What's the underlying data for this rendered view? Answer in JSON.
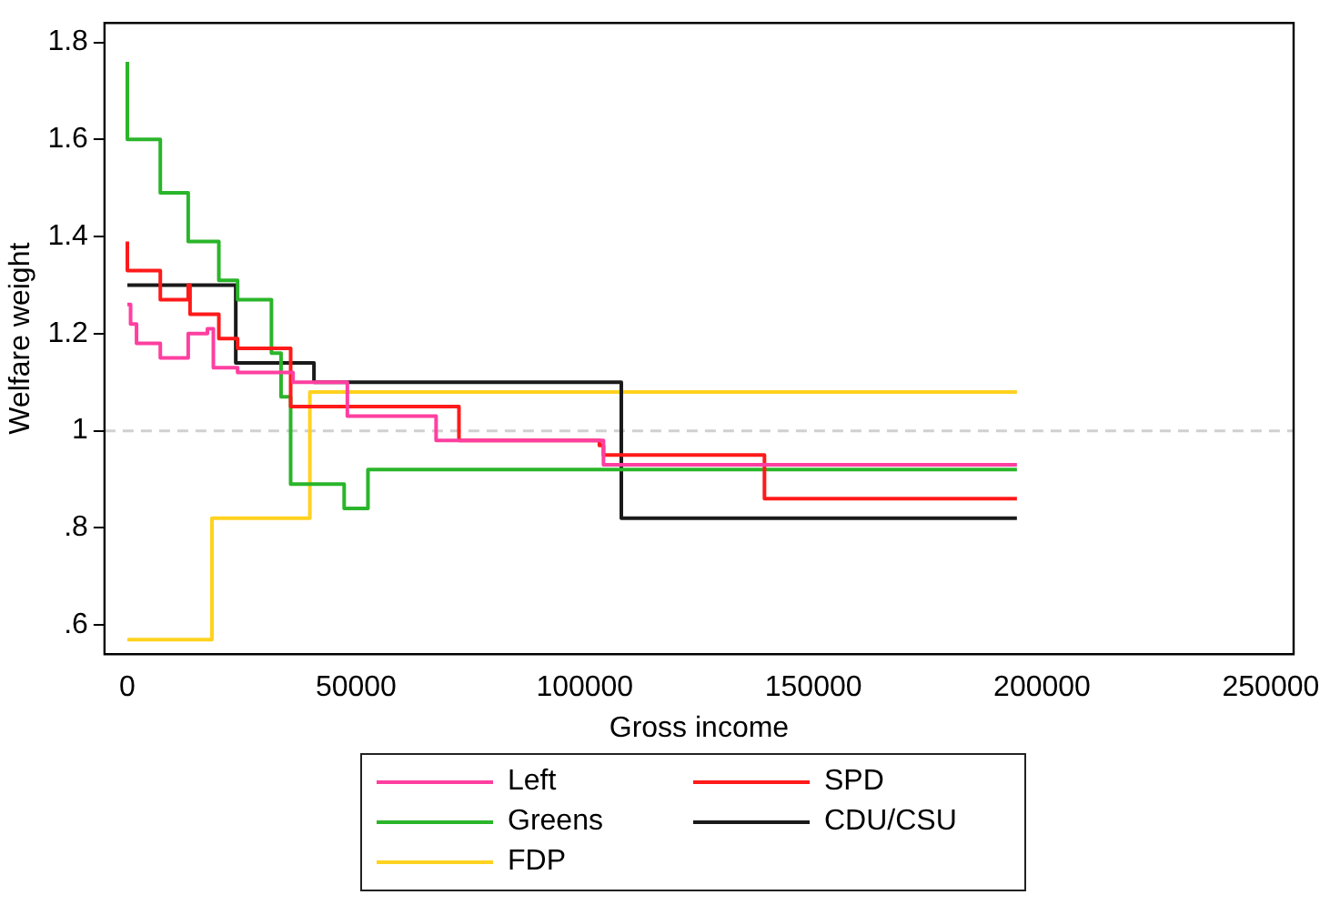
{
  "chart_data": {
    "type": "step",
    "xlabel": "Gross income",
    "ylabel": "Welfare weight",
    "xlim": [
      -5000,
      255000
    ],
    "xticks": [
      0,
      50000,
      100000,
      150000,
      200000,
      250000
    ],
    "ylim": [
      0.54,
      1.84
    ],
    "yticks": [
      {
        "value": 0.6,
        "label": ".6"
      },
      {
        "value": 0.8,
        "label": ".8"
      },
      1,
      1.2,
      1.4,
      1.6,
      1.8
    ],
    "grid": false,
    "legend": "bottom",
    "line_style": "solid",
    "marker": "none",
    "ref_lines": [
      {
        "axis": "y",
        "value": 1,
        "color": "#d0d0d0",
        "line_style": "dashed"
      }
    ],
    "series": [
      {
        "name": "Left",
        "color": "#ff3fa0",
        "x": [
          0,
          700,
          2000,
          7200,
          13300,
          17500,
          18800,
          24100,
          36200,
          48100,
          67500,
          104100,
          194500
        ],
        "values": [
          1.26,
          1.22,
          1.18,
          1.15,
          1.2,
          1.21,
          1.13,
          1.12,
          1.1,
          1.03,
          0.98,
          0.93,
          0.93
        ]
      },
      {
        "name": "SPD",
        "color": "#ff1a1a",
        "x": [
          0,
          0,
          7200,
          13300,
          13700,
          20000,
          24100,
          35700,
          72500,
          103200,
          104100,
          139300,
          194500
        ],
        "values": [
          1.39,
          1.33,
          1.27,
          1.3,
          1.24,
          1.19,
          1.17,
          1.05,
          0.98,
          0.97,
          0.95,
          0.86,
          0.86
        ]
      },
      {
        "name": "Greens",
        "color": "#2ab52a",
        "x": [
          0,
          0,
          7200,
          13300,
          20000,
          24100,
          31500,
          33600,
          35700,
          47400,
          52600,
          194500
        ],
        "values": [
          1.76,
          1.6,
          1.49,
          1.39,
          1.31,
          1.27,
          1.16,
          1.07,
          0.89,
          0.84,
          0.92,
          0.92
        ]
      },
      {
        "name": "CDU/CSU",
        "color": "#1a1a1a",
        "x": [
          0,
          23700,
          40800,
          108000,
          194500
        ],
        "values": [
          1.3,
          1.14,
          1.1,
          0.82,
          0.82
        ]
      },
      {
        "name": "FDP",
        "color": "#ffd21f",
        "x": [
          0,
          18500,
          39900,
          194500
        ],
        "values": [
          0.57,
          0.82,
          1.08,
          1.08
        ]
      }
    ]
  }
}
